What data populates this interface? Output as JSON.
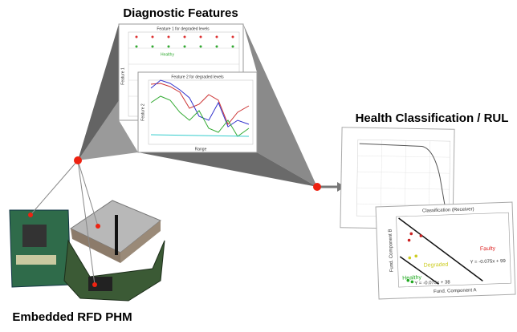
{
  "header": {
    "left_title": "Diagnostic Features",
    "right_title": "Health Classification / RUL",
    "bottom_title": "Embedded RFD PHM"
  },
  "feature_chart_1": {
    "title": "Feature 1 for degraded levels",
    "y_label": "Feature 1",
    "legend": "Healthy"
  },
  "feature_chart_2": {
    "title": "Feature 2 for degraded levels",
    "y_label": "Feature 2",
    "x_label": "Range"
  },
  "classification_chart": {
    "title": "Classification  (Receiver)",
    "x_label": "Fund. Component A",
    "y_label": "Fund. Component B",
    "regions": [
      "Faulty",
      "Degraded",
      "Healthy"
    ],
    "equations": [
      "Y = -0.075x + 99",
      "Y = -0.075x + 38"
    ]
  }
}
